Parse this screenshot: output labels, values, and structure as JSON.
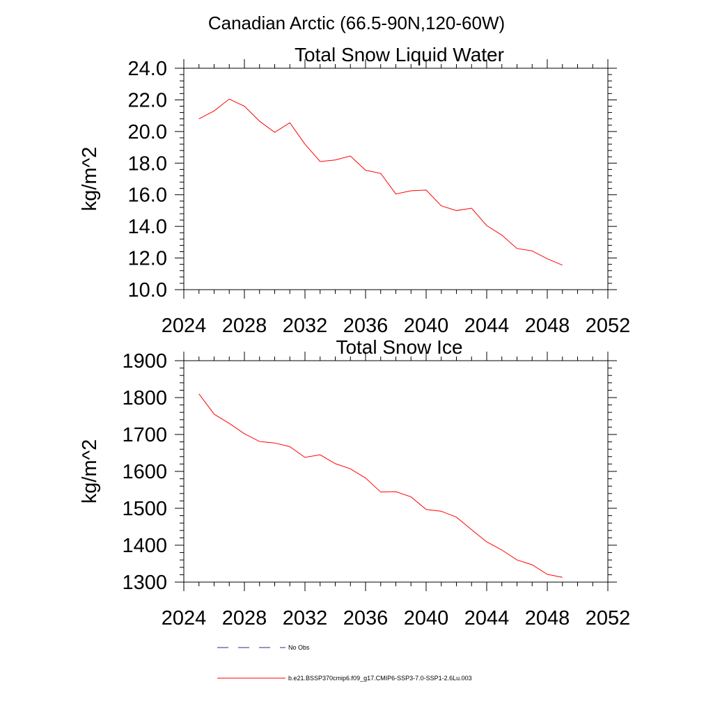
{
  "page": {
    "title": "Canadian Arctic (66.5-90N,120-60W)"
  },
  "chart_data": [
    {
      "type": "line",
      "title": "Total Snow Liquid Water",
      "xlabel": "",
      "ylabel": "kg/m^2",
      "xlim": [
        2024,
        2052
      ],
      "ylim": [
        10.0,
        24.0
      ],
      "xticks": [
        2024,
        2028,
        2032,
        2036,
        2040,
        2044,
        2048,
        2052
      ],
      "xtick_labels": [
        "2024",
        "2028",
        "2032",
        "2036",
        "2040",
        "2044",
        "2048",
        "2052"
      ],
      "yticks": [
        10.0,
        12.0,
        14.0,
        16.0,
        18.0,
        20.0,
        22.0,
        24.0
      ],
      "ytick_labels": [
        "10.0",
        "12.0",
        "14.0",
        "16.0",
        "18.0",
        "20.0",
        "22.0",
        "24.0"
      ],
      "grid": false,
      "series": [
        {
          "color": "#ff0000",
          "x": [
            2025,
            2026,
            2027,
            2028,
            2029,
            2030,
            2031,
            2032,
            2033,
            2034,
            2035,
            2036,
            2037,
            2038,
            2039,
            2040,
            2041,
            2042,
            2043,
            2044,
            2045,
            2046,
            2047,
            2048,
            2049
          ],
          "y": [
            20.8,
            21.3,
            22.05,
            21.6,
            20.65,
            19.95,
            20.55,
            19.2,
            18.1,
            18.2,
            18.45,
            17.55,
            17.35,
            16.05,
            16.25,
            16.3,
            15.3,
            15.0,
            15.15,
            14.05,
            13.45,
            12.6,
            12.45,
            11.95,
            11.55
          ]
        }
      ]
    },
    {
      "type": "line",
      "title": "Total Snow Ice",
      "xlabel": "",
      "ylabel": "kg/m^2",
      "xlim": [
        2024,
        2052
      ],
      "ylim": [
        1300,
        1900
      ],
      "xticks": [
        2024,
        2028,
        2032,
        2036,
        2040,
        2044,
        2048,
        2052
      ],
      "xtick_labels": [
        "2024",
        "2028",
        "2032",
        "2036",
        "2040",
        "2044",
        "2048",
        "2052"
      ],
      "yticks": [
        1300,
        1400,
        1500,
        1600,
        1700,
        1800,
        1900
      ],
      "ytick_labels": [
        "1300",
        "1400",
        "1500",
        "1600",
        "1700",
        "1800",
        "1900"
      ],
      "grid": false,
      "series": [
        {
          "color": "#ff0000",
          "x": [
            2025,
            2026,
            2027,
            2028,
            2029,
            2030,
            2031,
            2032,
            2033,
            2034,
            2035,
            2036,
            2037,
            2038,
            2039,
            2040,
            2041,
            2042,
            2043,
            2044,
            2045,
            2046,
            2047,
            2048,
            2049
          ],
          "y": [
            1810,
            1755,
            1730,
            1702,
            1681,
            1677,
            1667,
            1638,
            1645,
            1621,
            1607,
            1582,
            1544,
            1545,
            1531,
            1497,
            1492,
            1476,
            1442,
            1409,
            1387,
            1360,
            1347,
            1321,
            1313
          ]
        }
      ]
    }
  ],
  "legend": {
    "placement": "bottom",
    "items": [
      {
        "label": "No Obs",
        "color": "#2a2a8a",
        "style": "dashed"
      },
      {
        "label": "b.e21.BSSP370cmip6.f09_g17.CMIP6-SSP3-7.0-SSP1-2.6Lu.003",
        "color": "#ff0000",
        "style": "solid"
      }
    ]
  }
}
